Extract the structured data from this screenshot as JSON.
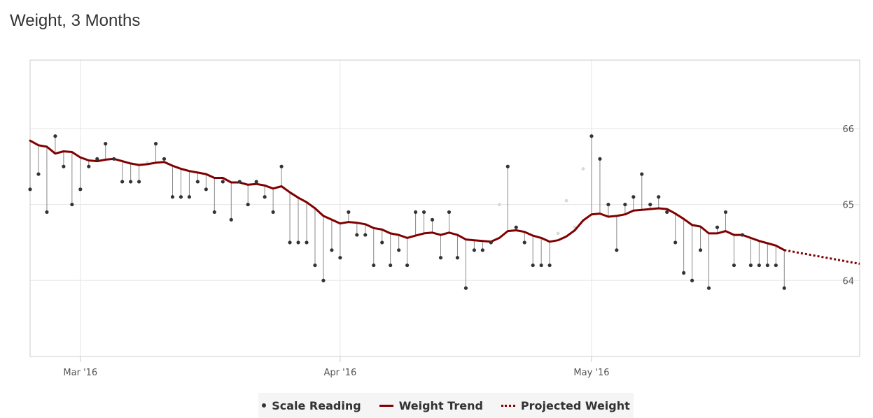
{
  "title": "Weight, 3 Months",
  "legend": {
    "scale_reading": "Scale Reading",
    "weight_trend": "Weight Trend",
    "projected_weight": "Projected Weight"
  },
  "colors": {
    "trend": "#800000",
    "point": "#333333",
    "stem": "#888888",
    "grid": "#e6e6e6",
    "faded_point": "#d9d9d9"
  },
  "chart_data": {
    "type": "line",
    "title": "Weight, 3 Months",
    "x_ticks": [
      {
        "date": "2016-03-01",
        "label": "Mar '16"
      },
      {
        "date": "2016-04-01",
        "label": "Apr '16"
      },
      {
        "date": "2016-05-01",
        "label": "May '16"
      }
    ],
    "y_ticks": [
      64,
      65,
      66
    ],
    "xlim": [
      "2016-02-24",
      "2016-06-02"
    ],
    "ylim": [
      63.0,
      66.9
    ],
    "y_axis_side": "right",
    "grid": true,
    "legend_position": "bottom",
    "series": [
      {
        "name": "Scale Reading",
        "style": "points",
        "points": [
          [
            "2016-02-24",
            65.2
          ],
          [
            "2016-02-25",
            65.4
          ],
          [
            "2016-02-26",
            64.9
          ],
          [
            "2016-02-27",
            65.9
          ],
          [
            "2016-02-28",
            65.5
          ],
          [
            "2016-02-29",
            65.0
          ],
          [
            "2016-03-01",
            65.2
          ],
          [
            "2016-03-02",
            65.5
          ],
          [
            "2016-03-03",
            65.6
          ],
          [
            "2016-03-04",
            65.8
          ],
          [
            "2016-03-05",
            65.6
          ],
          [
            "2016-03-06",
            65.3
          ],
          [
            "2016-03-07",
            65.3
          ],
          [
            "2016-03-08",
            65.3
          ],
          [
            "2016-03-10",
            65.8
          ],
          [
            "2016-03-11",
            65.6
          ],
          [
            "2016-03-12",
            65.1
          ],
          [
            "2016-03-13",
            65.1
          ],
          [
            "2016-03-14",
            65.1
          ],
          [
            "2016-03-15",
            65.3
          ],
          [
            "2016-03-16",
            65.2
          ],
          [
            "2016-03-17",
            64.9
          ],
          [
            "2016-03-18",
            65.3
          ],
          [
            "2016-03-19",
            64.8
          ],
          [
            "2016-03-20",
            65.3
          ],
          [
            "2016-03-21",
            65.0
          ],
          [
            "2016-03-22",
            65.3
          ],
          [
            "2016-03-23",
            65.1
          ],
          [
            "2016-03-24",
            64.9
          ],
          [
            "2016-03-25",
            65.5
          ],
          [
            "2016-03-26",
            64.5
          ],
          [
            "2016-03-27",
            64.5
          ],
          [
            "2016-03-28",
            64.5
          ],
          [
            "2016-03-29",
            64.2
          ],
          [
            "2016-03-30",
            64.0
          ],
          [
            "2016-03-31",
            64.4
          ],
          [
            "2016-04-01",
            64.3
          ],
          [
            "2016-04-02",
            64.9
          ],
          [
            "2016-04-03",
            64.6
          ],
          [
            "2016-04-04",
            64.6
          ],
          [
            "2016-04-05",
            64.2
          ],
          [
            "2016-04-06",
            64.5
          ],
          [
            "2016-04-07",
            64.2
          ],
          [
            "2016-04-08",
            64.4
          ],
          [
            "2016-04-09",
            64.2
          ],
          [
            "2016-04-10",
            64.9
          ],
          [
            "2016-04-11",
            64.9
          ],
          [
            "2016-04-12",
            64.8
          ],
          [
            "2016-04-13",
            64.3
          ],
          [
            "2016-04-14",
            64.9
          ],
          [
            "2016-04-15",
            64.3
          ],
          [
            "2016-04-16",
            63.9
          ],
          [
            "2016-04-17",
            64.4
          ],
          [
            "2016-04-18",
            64.4
          ],
          [
            "2016-04-19",
            64.5
          ],
          [
            "2016-04-21",
            65.5
          ],
          [
            "2016-04-22",
            64.7
          ],
          [
            "2016-04-23",
            64.5
          ],
          [
            "2016-04-24",
            64.2
          ],
          [
            "2016-04-25",
            64.2
          ],
          [
            "2016-04-26",
            64.2
          ],
          [
            "2016-05-01",
            65.9
          ],
          [
            "2016-05-02",
            65.6
          ],
          [
            "2016-05-03",
            65.0
          ],
          [
            "2016-05-04",
            64.4
          ],
          [
            "2016-05-05",
            65.0
          ],
          [
            "2016-05-06",
            65.1
          ],
          [
            "2016-05-07",
            65.4
          ],
          [
            "2016-05-08",
            65.0
          ],
          [
            "2016-05-09",
            65.1
          ],
          [
            "2016-05-10",
            64.9
          ],
          [
            "2016-05-11",
            64.5
          ],
          [
            "2016-05-12",
            64.1
          ],
          [
            "2016-05-13",
            64.0
          ],
          [
            "2016-05-14",
            64.4
          ],
          [
            "2016-05-15",
            63.9
          ],
          [
            "2016-05-16",
            64.7
          ],
          [
            "2016-05-17",
            64.9
          ],
          [
            "2016-05-18",
            64.2
          ],
          [
            "2016-05-19",
            64.6
          ],
          [
            "2016-05-20",
            64.2
          ],
          [
            "2016-05-21",
            64.2
          ],
          [
            "2016-05-22",
            64.2
          ],
          [
            "2016-05-23",
            64.2
          ],
          [
            "2016-05-24",
            63.9
          ]
        ]
      },
      {
        "name": "Weight Trend",
        "style": "line",
        "points": [
          [
            "2016-02-24",
            65.84
          ],
          [
            "2016-02-25",
            65.78
          ],
          [
            "2016-02-26",
            65.76
          ],
          [
            "2016-02-27",
            65.67
          ],
          [
            "2016-02-28",
            65.7
          ],
          [
            "2016-02-29",
            65.69
          ],
          [
            "2016-03-01",
            65.62
          ],
          [
            "2016-03-02",
            65.58
          ],
          [
            "2016-03-03",
            65.57
          ],
          [
            "2016-03-04",
            65.59
          ],
          [
            "2016-03-05",
            65.6
          ],
          [
            "2016-03-06",
            65.57
          ],
          [
            "2016-03-07",
            65.54
          ],
          [
            "2016-03-08",
            65.52
          ],
          [
            "2016-03-09",
            65.53
          ],
          [
            "2016-03-10",
            65.55
          ],
          [
            "2016-03-11",
            65.56
          ],
          [
            "2016-03-12",
            65.51
          ],
          [
            "2016-03-13",
            65.47
          ],
          [
            "2016-03-14",
            65.44
          ],
          [
            "2016-03-15",
            65.42
          ],
          [
            "2016-03-16",
            65.4
          ],
          [
            "2016-03-17",
            65.35
          ],
          [
            "2016-03-18",
            65.35
          ],
          [
            "2016-03-19",
            65.29
          ],
          [
            "2016-03-20",
            65.29
          ],
          [
            "2016-03-21",
            65.26
          ],
          [
            "2016-03-22",
            65.27
          ],
          [
            "2016-03-23",
            65.25
          ],
          [
            "2016-03-24",
            65.21
          ],
          [
            "2016-03-25",
            65.24
          ],
          [
            "2016-03-26",
            65.16
          ],
          [
            "2016-03-27",
            65.09
          ],
          [
            "2016-03-28",
            65.03
          ],
          [
            "2016-03-29",
            64.95
          ],
          [
            "2016-03-30",
            64.85
          ],
          [
            "2016-03-31",
            64.8
          ],
          [
            "2016-04-01",
            64.75
          ],
          [
            "2016-04-02",
            64.77
          ],
          [
            "2016-04-03",
            64.76
          ],
          [
            "2016-04-04",
            64.74
          ],
          [
            "2016-04-05",
            64.69
          ],
          [
            "2016-04-06",
            64.67
          ],
          [
            "2016-04-07",
            64.62
          ],
          [
            "2016-04-08",
            64.6
          ],
          [
            "2016-04-09",
            64.56
          ],
          [
            "2016-04-10",
            64.59
          ],
          [
            "2016-04-11",
            64.62
          ],
          [
            "2016-04-12",
            64.63
          ],
          [
            "2016-04-13",
            64.6
          ],
          [
            "2016-04-14",
            64.63
          ],
          [
            "2016-04-15",
            64.6
          ],
          [
            "2016-04-16",
            64.54
          ],
          [
            "2016-04-17",
            64.53
          ],
          [
            "2016-04-18",
            64.52
          ],
          [
            "2016-04-19",
            64.51
          ],
          [
            "2016-04-20",
            64.56
          ],
          [
            "2016-04-21",
            64.65
          ],
          [
            "2016-04-22",
            64.66
          ],
          [
            "2016-04-23",
            64.64
          ],
          [
            "2016-04-24",
            64.59
          ],
          [
            "2016-04-25",
            64.56
          ],
          [
            "2016-04-26",
            64.51
          ],
          [
            "2016-04-27",
            64.53
          ],
          [
            "2016-04-28",
            64.58
          ],
          [
            "2016-04-29",
            64.66
          ],
          [
            "2016-04-30",
            64.79
          ],
          [
            "2016-05-01",
            64.87
          ],
          [
            "2016-05-02",
            64.88
          ],
          [
            "2016-05-03",
            64.84
          ],
          [
            "2016-05-04",
            64.85
          ],
          [
            "2016-05-05",
            64.87
          ],
          [
            "2016-05-06",
            64.92
          ],
          [
            "2016-05-07",
            64.93
          ],
          [
            "2016-05-08",
            64.94
          ],
          [
            "2016-05-09",
            64.95
          ],
          [
            "2016-05-10",
            64.94
          ],
          [
            "2016-05-11",
            64.88
          ],
          [
            "2016-05-12",
            64.81
          ],
          [
            "2016-05-13",
            64.73
          ],
          [
            "2016-05-14",
            64.71
          ],
          [
            "2016-05-15",
            64.62
          ],
          [
            "2016-05-16",
            64.62
          ],
          [
            "2016-05-17",
            64.65
          ],
          [
            "2016-05-18",
            64.6
          ],
          [
            "2016-05-19",
            64.6
          ],
          [
            "2016-05-20",
            64.56
          ],
          [
            "2016-05-21",
            64.52
          ],
          [
            "2016-05-22",
            64.49
          ],
          [
            "2016-05-23",
            64.46
          ],
          [
            "2016-05-24",
            64.4
          ]
        ]
      },
      {
        "name": "Projected Weight",
        "style": "dotted-line",
        "points": [
          [
            "2016-05-24",
            64.4
          ],
          [
            "2016-06-02",
            64.22
          ]
        ]
      }
    ],
    "faded_points": [
      [
        "2016-03-09",
        65.55
      ],
      [
        "2016-04-20",
        65.0
      ],
      [
        "2016-04-27",
        64.62
      ],
      [
        "2016-04-28",
        65.05
      ],
      [
        "2016-04-29",
        64.7
      ],
      [
        "2016-04-30",
        65.47
      ]
    ]
  }
}
